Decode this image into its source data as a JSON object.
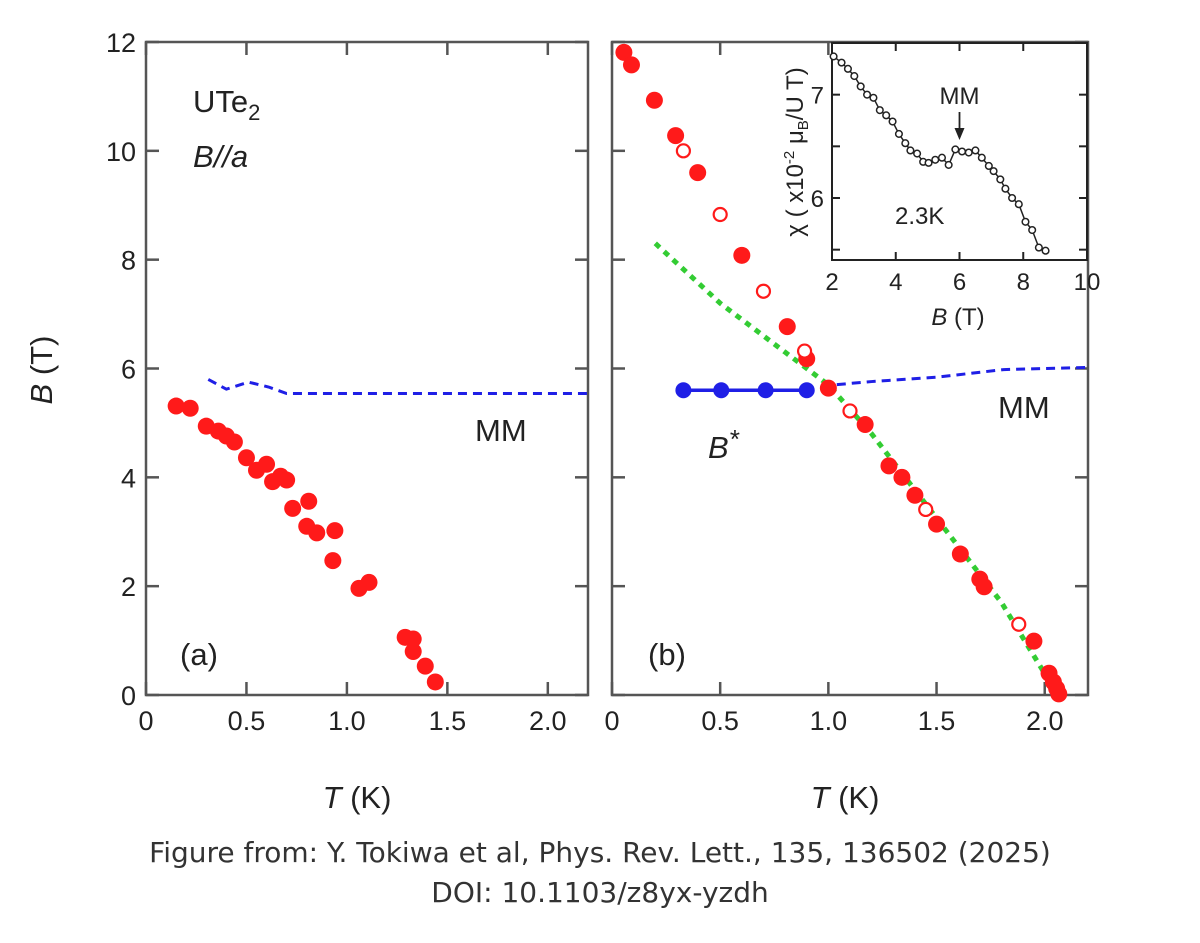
{
  "colors": {
    "red": "#ff1a1a",
    "blue": "#1f1fe6",
    "green": "#33cc33",
    "axis": "#555555",
    "inset": "#222222"
  },
  "caption": {
    "line1": "Figure from: Y. Tokiwa et al, Phys. Rev. Lett., 135, 136502 (2025)",
    "line2": "DOI:  10.1103/z8yx-yzdh"
  },
  "chart_data": [
    {
      "id": "a",
      "type": "scatter",
      "panel_label": "(a)",
      "sample": {
        "compound": "UTe",
        "compound_sub": "2",
        "field_var": "B",
        "field_dir": "//a"
      },
      "xlabel": {
        "var": "T",
        "unit": " (K)"
      },
      "ylabel": {
        "var": "B",
        "unit": " (T)"
      },
      "xlim": [
        0,
        2.2
      ],
      "ylim": [
        0,
        12
      ],
      "xticks": [
        "0",
        "0.5",
        "1.0",
        "1.5",
        "2.0"
      ],
      "xtick_values": [
        0,
        0.5,
        1.0,
        1.5,
        2.0
      ],
      "yticks": [
        "0",
        "2",
        "4",
        "6",
        "8",
        "10",
        "12"
      ],
      "ytick_values": [
        0,
        2,
        4,
        6,
        8,
        10,
        12
      ],
      "filled": [
        [
          0.15,
          5.31
        ],
        [
          0.22,
          5.27
        ],
        [
          0.3,
          4.94
        ],
        [
          0.36,
          4.85
        ],
        [
          0.4,
          4.76
        ],
        [
          0.44,
          4.65
        ],
        [
          0.5,
          4.36
        ],
        [
          0.55,
          4.13
        ],
        [
          0.6,
          4.24
        ],
        [
          0.63,
          3.92
        ],
        [
          0.67,
          4.02
        ],
        [
          0.7,
          3.95
        ],
        [
          0.73,
          3.43
        ],
        [
          0.81,
          3.56
        ],
        [
          0.8,
          3.1
        ],
        [
          0.85,
          2.98
        ],
        [
          0.94,
          3.02
        ],
        [
          0.93,
          2.47
        ],
        [
          1.06,
          1.96
        ],
        [
          1.11,
          2.07
        ],
        [
          1.29,
          1.06
        ],
        [
          1.33,
          1.03
        ],
        [
          1.33,
          0.8
        ],
        [
          1.39,
          0.53
        ],
        [
          1.44,
          0.24
        ]
      ],
      "open": [],
      "mm_line": [
        [
          0.31,
          5.8
        ],
        [
          0.4,
          5.62
        ],
        [
          0.51,
          5.75
        ],
        [
          0.61,
          5.66
        ],
        [
          0.7,
          5.54
        ],
        [
          2.2,
          5.54
        ]
      ],
      "mm_label": "MM"
    },
    {
      "id": "b",
      "type": "scatter",
      "panel_label": "(b)",
      "xlabel": {
        "var": "T",
        "unit": " (K)"
      },
      "xlim": [
        0,
        2.2
      ],
      "ylim": [
        0,
        12
      ],
      "xticks": [
        "0",
        "0.5",
        "1.0",
        "1.5",
        "2.0"
      ],
      "xtick_values": [
        0,
        0.5,
        1.0,
        1.5,
        2.0
      ],
      "ytick_values": [
        0,
        2,
        4,
        6,
        8,
        10,
        12
      ],
      "filled": [
        [
          0.055,
          11.81
        ],
        [
          0.09,
          11.58
        ],
        [
          0.196,
          10.93
        ],
        [
          0.294,
          10.28
        ],
        [
          0.396,
          9.6
        ],
        [
          0.6,
          8.08
        ],
        [
          0.81,
          6.77
        ],
        [
          0.9,
          6.18
        ],
        [
          1.0,
          5.64
        ],
        [
          1.17,
          4.97
        ],
        [
          1.28,
          4.21
        ],
        [
          1.34,
          4.0
        ],
        [
          1.4,
          3.67
        ],
        [
          1.5,
          3.14
        ],
        [
          1.61,
          2.59
        ],
        [
          1.7,
          2.13
        ],
        [
          1.72,
          1.99
        ],
        [
          1.95,
          0.99
        ],
        [
          2.02,
          0.4
        ],
        [
          2.04,
          0.24
        ],
        [
          2.055,
          0.12
        ],
        [
          2.065,
          0.02
        ]
      ],
      "open": [
        [
          0.33,
          10.0
        ],
        [
          0.5,
          8.83
        ],
        [
          0.7,
          7.42
        ],
        [
          0.89,
          6.32
        ],
        [
          1.1,
          5.22
        ],
        [
          1.45,
          3.41
        ],
        [
          1.88,
          1.3
        ]
      ],
      "bstar_line": [
        [
          0.33,
          5.6
        ],
        [
          0.505,
          5.6
        ],
        [
          0.71,
          5.6
        ],
        [
          0.9,
          5.6
        ]
      ],
      "bstar_label": {
        "var": "B",
        "suffix": "*"
      },
      "mm_line": [
        [
          0.97,
          5.68
        ],
        [
          1.2,
          5.76
        ],
        [
          1.5,
          5.84
        ],
        [
          1.81,
          5.98
        ],
        [
          2.2,
          6.02
        ]
      ],
      "mm_label": "MM",
      "green_line": [
        [
          0.2,
          8.3
        ],
        [
          0.5,
          7.2
        ],
        [
          0.8,
          6.3
        ],
        [
          1.0,
          5.7
        ],
        [
          1.2,
          4.8
        ],
        [
          1.5,
          3.25
        ],
        [
          1.8,
          1.7
        ],
        [
          2.06,
          0.0
        ]
      ]
    },
    {
      "id": "inset",
      "type": "line",
      "xlabel": {
        "var": "B",
        "unit": " (T)"
      },
      "ylabel": {
        "pre": "χ ( x10",
        "sup": "-2",
        "mid": " μ",
        "sub": "B",
        "post": "/U T)"
      },
      "xlim": [
        2,
        10
      ],
      "ylim": [
        5.4,
        7.5
      ],
      "xticks": [
        "2",
        "4",
        "6",
        "8",
        "10"
      ],
      "xtick_values": [
        2,
        4,
        6,
        8,
        10
      ],
      "yticks": [
        "6",
        "7"
      ],
      "ytick_values": [
        6,
        7
      ],
      "yminor": [
        5.5,
        6.5
      ],
      "temperature_label": "2.3K",
      "mm_label": "MM",
      "mm_arrow_at": [
        6.0,
        6.5
      ],
      "points": [
        [
          2.05,
          7.37
        ],
        [
          2.3,
          7.31
        ],
        [
          2.5,
          7.25
        ],
        [
          2.7,
          7.18
        ],
        [
          2.9,
          7.08
        ],
        [
          3.1,
          7.0
        ],
        [
          3.3,
          6.97
        ],
        [
          3.5,
          6.85
        ],
        [
          3.7,
          6.8
        ],
        [
          3.9,
          6.74
        ],
        [
          4.1,
          6.62
        ],
        [
          4.3,
          6.53
        ],
        [
          4.46,
          6.46
        ],
        [
          4.67,
          6.43
        ],
        [
          4.86,
          6.35
        ],
        [
          5.03,
          6.34
        ],
        [
          5.24,
          6.37
        ],
        [
          5.45,
          6.39
        ],
        [
          5.66,
          6.32
        ],
        [
          5.87,
          6.47
        ],
        [
          6.08,
          6.45
        ],
        [
          6.29,
          6.44
        ],
        [
          6.5,
          6.46
        ],
        [
          6.7,
          6.39
        ],
        [
          6.92,
          6.31
        ],
        [
          7.07,
          6.26
        ],
        [
          7.28,
          6.18
        ],
        [
          7.44,
          6.09
        ],
        [
          7.65,
          6.0
        ],
        [
          7.86,
          5.94
        ],
        [
          8.07,
          5.77
        ],
        [
          8.28,
          5.69
        ],
        [
          8.49,
          5.52
        ],
        [
          8.7,
          5.49
        ]
      ]
    }
  ]
}
